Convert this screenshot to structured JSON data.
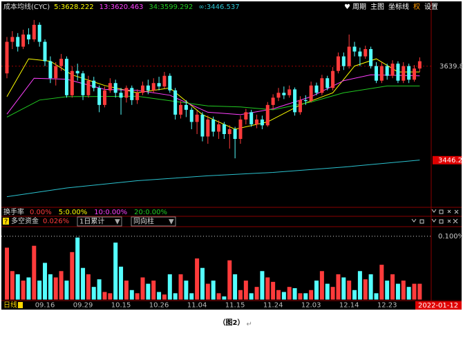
{
  "chart_data": [
    {
      "type": "candlestick",
      "title": "成本均线(CYC)",
      "period": "日线",
      "current_date": "2022-01-12",
      "categories": [
        null,
        null,
        null,
        null,
        null,
        null,
        null,
        "09.16",
        null,
        null,
        null,
        null,
        null,
        null,
        "09.29",
        null,
        null,
        null,
        null,
        null,
        null,
        "10.15",
        null,
        null,
        null,
        null,
        null,
        null,
        "10.26",
        null,
        null,
        null,
        null,
        null,
        null,
        "11.04",
        null,
        null,
        null,
        null,
        null,
        null,
        "11.15",
        null,
        null,
        null,
        null,
        null,
        null,
        "11.24",
        null,
        null,
        null,
        null,
        null,
        null,
        "12.03",
        null,
        null,
        null,
        null,
        null,
        null,
        "12.14",
        null,
        null,
        null,
        null,
        null,
        null,
        "12.23",
        null,
        null,
        null,
        null,
        null,
        null
      ],
      "open": [
        3625,
        3690,
        3700,
        3680,
        3705,
        3695,
        3725,
        3690,
        3650,
        3615,
        3640,
        3655,
        3580,
        3630,
        3625,
        3580,
        3610,
        3595,
        3560,
        3590,
        3605,
        3585,
        3575,
        3595,
        3570,
        3585,
        3600,
        3590,
        3605,
        3598,
        3620,
        3590,
        3540,
        3560,
        3550,
        3525,
        3540,
        3495,
        3530,
        3505,
        3520,
        3500,
        3510,
        3490,
        3530,
        3545,
        3520,
        3530,
        3518,
        3560,
        3575,
        3585,
        3580,
        3592,
        3545,
        3570,
        3568,
        3600,
        3585,
        3615,
        3595,
        3630,
        3660,
        3640,
        3680,
        3670,
        3660,
        3675,
        3640,
        3610,
        3640,
        3620,
        3645,
        3610,
        3640,
        3612,
        3635
      ],
      "high": [
        3700,
        3712,
        3708,
        3715,
        3718,
        3735,
        3730,
        3695,
        3660,
        3648,
        3665,
        3660,
        3640,
        3645,
        3630,
        3620,
        3618,
        3600,
        3598,
        3615,
        3612,
        3595,
        3600,
        3600,
        3592,
        3608,
        3612,
        3615,
        3618,
        3628,
        3625,
        3595,
        3568,
        3570,
        3555,
        3548,
        3545,
        3538,
        3536,
        3528,
        3525,
        3518,
        3515,
        3538,
        3552,
        3550,
        3540,
        3538,
        3566,
        3582,
        3595,
        3598,
        3600,
        3596,
        3578,
        3580,
        3608,
        3606,
        3622,
        3620,
        3638,
        3668,
        3668,
        3705,
        3690,
        3678,
        3682,
        3680,
        3648,
        3648,
        3645,
        3652,
        3650,
        3648,
        3645,
        3642,
        3658
      ],
      "low": [
        3615,
        3675,
        3670,
        3675,
        3685,
        3690,
        3680,
        3640,
        3605,
        3600,
        3630,
        3575,
        3575,
        3610,
        3570,
        3575,
        3588,
        3545,
        3555,
        3585,
        3575,
        3540,
        3565,
        3560,
        3562,
        3580,
        3582,
        3585,
        3590,
        3594,
        3585,
        3530,
        3532,
        3535,
        3510,
        3500,
        3485,
        3480,
        3495,
        3490,
        3490,
        3470,
        3450,
        3480,
        3520,
        3515,
        3512,
        3510,
        3515,
        3550,
        3568,
        3572,
        3575,
        3538,
        3540,
        3560,
        3565,
        3580,
        3580,
        3590,
        3590,
        3625,
        3632,
        3635,
        3660,
        3640,
        3655,
        3635,
        3605,
        3605,
        3612,
        3615,
        3605,
        3605,
        3605,
        3608,
        3628
      ],
      "close": [
        3690,
        3700,
        3680,
        3705,
        3695,
        3725,
        3690,
        3650,
        3615,
        3640,
        3655,
        3580,
        3630,
        3625,
        3580,
        3610,
        3595,
        3560,
        3590,
        3605,
        3585,
        3575,
        3595,
        3570,
        3585,
        3600,
        3590,
        3605,
        3598,
        3620,
        3590,
        3540,
        3560,
        3550,
        3525,
        3540,
        3495,
        3530,
        3505,
        3520,
        3500,
        3510,
        3490,
        3530,
        3545,
        3520,
        3530,
        3518,
        3560,
        3575,
        3585,
        3580,
        3592,
        3545,
        3570,
        3568,
        3600,
        3585,
        3615,
        3595,
        3630,
        3660,
        3640,
        3680,
        3670,
        3660,
        3675,
        3640,
        3610,
        3640,
        3620,
        3645,
        3610,
        3640,
        3612,
        3635,
        3650
      ],
      "up_color": "#ff3b3b",
      "down_color": "#54ffff",
      "ylim": [
        3352,
        3769
      ],
      "yticks": [
        3639.8,
        3446.2
      ],
      "series": [
        {
          "name": "5:3628.222",
          "color": "#ffff00",
          "x": [
            0,
            4,
            8,
            12,
            18,
            24,
            30,
            36,
            42,
            48,
            54,
            60,
            64,
            68,
            72,
            76
          ],
          "values": [
            3577,
            3655,
            3650,
            3622,
            3600,
            3585,
            3595,
            3540,
            3510,
            3525,
            3560,
            3585,
            3640,
            3655,
            3628,
            3628
          ]
        },
        {
          "name": "13:3620.463",
          "color": "#ff40ff",
          "x": [
            0,
            5,
            11,
            18,
            24,
            30,
            37,
            43,
            49,
            56,
            62,
            67,
            76
          ],
          "values": [
            3541,
            3615,
            3613,
            3592,
            3590,
            3580,
            3545,
            3540,
            3552,
            3577,
            3610,
            3622,
            3620
          ]
        },
        {
          "name": "34:3599.292",
          "color": "#22cc22",
          "x": [
            0,
            6,
            11,
            24,
            37,
            43,
            49,
            56,
            62,
            70,
            76
          ],
          "values": [
            3535,
            3570,
            3577,
            3578,
            3558,
            3556,
            3550,
            3566,
            3585,
            3599,
            3599
          ]
        },
        {
          "name": "∞:3446.537",
          "color": "#2bc3d0",
          "x": [
            0,
            11,
            24,
            37,
            49,
            62,
            76
          ],
          "values": [
            3371,
            3389,
            3404,
            3414,
            3421,
            3432,
            3446.5
          ]
        }
      ]
    },
    {
      "type": "bar",
      "title": "多空资金",
      "subtitle": "0.026%",
      "controls": [
        "1日累计",
        "同向柱"
      ],
      "values": [
        0.082,
        0.045,
        0.04,
        0.03,
        0.035,
        0.085,
        0.03,
        0.058,
        0.04,
        0.035,
        0.045,
        0.03,
        0.075,
        0.098,
        0.05,
        0.04,
        0.02,
        0.032,
        0.012,
        0.01,
        0.09,
        0.052,
        0.03,
        0.015,
        0.01,
        0.035,
        0.025,
        0.03,
        0.012,
        0.008,
        0.04,
        0.01,
        0.04,
        0.03,
        0.01,
        0.065,
        0.05,
        0.025,
        0.03,
        0.01,
        0.005,
        0.062,
        0.04,
        0.015,
        0.03,
        0.01,
        0.02,
        0.045,
        0.035,
        0.028,
        0.015,
        0.012,
        0.02,
        0.018,
        0.01,
        0.01,
        0.015,
        0.03,
        0.045,
        0.025,
        0.02,
        0.04,
        0.035,
        0.03,
        0.015,
        0.045,
        0.032,
        0.04,
        0.01,
        0.055,
        0.03,
        0.04,
        0.025,
        0.03,
        0.02,
        0.025,
        0.025
      ],
      "ylim": [
        0,
        0.113
      ],
      "yticks": [
        {
          "value": 0.1,
          "label": "0.100%"
        }
      ]
    }
  ],
  "indicator": {
    "name": "换手率",
    "items": [
      "0.00%",
      "5:0.00%",
      "10:0.00%",
      "20:0.00%"
    ]
  },
  "toolbar": [
    "周期",
    "主图",
    "坐标线",
    "权",
    "设置"
  ],
  "caption": "（图2）",
  "paragraph_mark": "↵"
}
